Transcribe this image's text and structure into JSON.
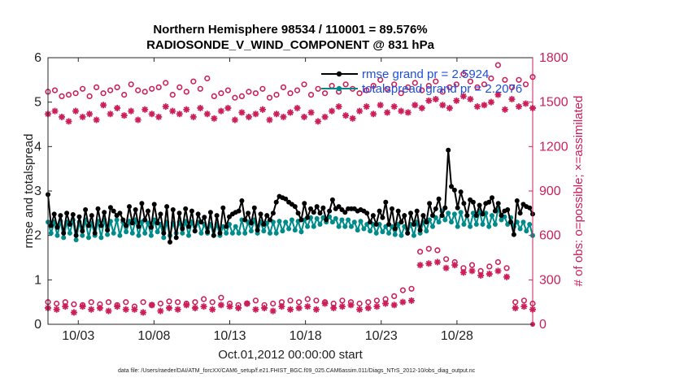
{
  "chart_data": {
    "type": "line",
    "title": "Northern Hemisphere 98534 / 110001 = 89.576%",
    "subtitle": "RADIOSONDE_V_WIND_COMPONENT @ 831 hPa",
    "xlabel": "Oct.01,2012 00:00:00 start",
    "ylabel_left": "rmse and totalspread",
    "ylabel_right": "# of obs: o=possible; ×=assimilated",
    "x_range": [
      1,
      33
    ],
    "x_ticks": [
      3,
      8,
      13,
      18,
      23,
      28
    ],
    "x_tick_labels": [
      "10/03",
      "10/08",
      "10/13",
      "10/18",
      "10/23",
      "10/28"
    ],
    "ylim_left": [
      0,
      6
    ],
    "y_ticks_left": [
      "0",
      "1",
      "2",
      "3",
      "4",
      "5",
      "6"
    ],
    "ylim_right": [
      0,
      1800
    ],
    "y_ticks_right": [
      "0",
      "300",
      "600",
      "900",
      "1200",
      "1500",
      "1800"
    ],
    "x_step_days": 0.25,
    "colors": {
      "rmse": "#000000",
      "totalspread": "#008b8b",
      "obs": "#cc1f5a",
      "legend_text": "#1f4fd6"
    },
    "legend": [
      "rmse grand pr = 2.5924",
      "totalspread grand pr = 2.2076"
    ],
    "series": [
      {
        "name": "rmse",
        "axis": "left",
        "values": [
          2.92,
          2.22,
          2.48,
          2.18,
          2.45,
          2.05,
          2.5,
          2.25,
          2.47,
          2.0,
          2.42,
          2.1,
          2.58,
          2.22,
          2.45,
          2.05,
          2.6,
          2.22,
          2.52,
          2.12,
          2.63,
          2.55,
          2.45,
          2.5,
          2.35,
          2.22,
          2.65,
          2.28,
          2.58,
          2.2,
          2.72,
          2.35,
          2.55,
          2.18,
          2.7,
          2.28,
          2.48,
          2.05,
          2.65,
          1.85,
          2.58,
          1.95,
          2.5,
          2.15,
          2.6,
          2.2,
          2.55,
          2.1,
          2.48,
          2.3,
          2.41,
          2.08,
          2.52,
          2.0,
          2.45,
          2.05,
          2.62,
          2.2,
          2.42,
          2.48,
          2.52,
          2.55,
          2.78,
          2.35,
          2.5,
          2.28,
          2.62,
          2.12,
          2.48,
          2.25,
          2.45,
          2.35,
          2.5,
          2.75,
          2.88,
          2.85,
          2.82,
          2.75,
          2.7,
          2.65,
          2.5,
          2.35,
          2.72,
          2.4,
          2.6,
          2.52,
          2.65,
          2.5,
          2.62,
          2.35,
          2.55,
          2.8,
          2.6,
          2.65,
          2.58,
          2.52,
          2.6,
          2.6,
          2.6,
          2.55,
          2.58,
          2.55,
          2.5,
          2.3,
          2.45,
          2.25,
          2.55,
          2.4,
          2.75,
          2.25,
          2.6,
          2.15,
          2.55,
          2.3,
          2.45,
          2.05,
          2.5,
          2.25,
          2.55,
          2.12,
          2.45,
          2.3,
          2.72,
          2.45,
          2.6,
          2.82,
          2.45,
          2.62,
          3.92,
          3.1,
          3.02,
          2.62,
          2.98,
          2.72,
          2.45,
          2.8,
          2.75,
          2.45,
          2.68,
          2.48,
          2.72,
          2.75,
          2.85,
          2.55,
          2.72,
          2.45,
          2.55,
          2.58,
          2.3,
          2.02,
          2.78,
          2.5,
          2.7,
          2.65,
          2.62,
          2.48
        ]
      },
      {
        "name": "totalspread",
        "axis": "left",
        "values": [
          2.3,
          2.05,
          2.3,
          2.0,
          2.32,
          1.95,
          2.3,
          2.05,
          2.35,
          1.9,
          2.3,
          2.0,
          2.35,
          1.95,
          2.28,
          2.0,
          2.32,
          1.95,
          2.35,
          2.02,
          2.32,
          2.05,
          2.35,
          2.0,
          2.3,
          2.08,
          2.32,
          2.05,
          2.35,
          2.0,
          2.3,
          2.05,
          2.28,
          2.0,
          2.35,
          2.08,
          2.25,
          1.95,
          2.3,
          2.0,
          2.28,
          2.05,
          2.3,
          2.05,
          2.32,
          2.0,
          2.3,
          2.1,
          2.3,
          2.05,
          2.25,
          2.05,
          2.25,
          2.0,
          2.25,
          2.0,
          2.2,
          2.05,
          2.25,
          2.05,
          2.2,
          2.05,
          2.35,
          2.05,
          2.3,
          2.1,
          2.35,
          2.05,
          2.3,
          2.1,
          2.28,
          2.05,
          2.3,
          2.05,
          2.32,
          2.1,
          2.3,
          2.15,
          2.35,
          2.12,
          2.32,
          2.08,
          2.35,
          2.2,
          2.4,
          2.2,
          2.38,
          2.25,
          2.4,
          2.3,
          2.42,
          2.3,
          2.38,
          2.2,
          2.35,
          2.2,
          2.35,
          2.2,
          2.3,
          2.12,
          2.32,
          2.15,
          2.25,
          2.1,
          2.25,
          2.05,
          2.25,
          2.08,
          2.2,
          2.05,
          2.2,
          2.02,
          2.25,
          2.0,
          2.2,
          2.05,
          2.25,
          2.0,
          2.3,
          2.05,
          2.3,
          2.1,
          2.35,
          2.2,
          2.4,
          2.3,
          2.55,
          2.35,
          2.5,
          2.3,
          2.48,
          2.2,
          2.52,
          2.25,
          2.45,
          2.2,
          2.5,
          2.25,
          2.55,
          2.25,
          2.5,
          2.2,
          2.45,
          2.25,
          2.62,
          2.35,
          2.42,
          2.25,
          2.4,
          2.2,
          2.3,
          2.15,
          2.3,
          2.1,
          2.25,
          2.0
        ]
      },
      {
        "name": "obs possible",
        "axis": "right",
        "values": [
          1570,
          1580,
          1540,
          1550,
          1560,
          1590,
          1540,
          1600,
          1560,
          1580,
          1600,
          1550,
          1620,
          1580,
          1570,
          1590,
          1600,
          1630,
          1550,
          1600,
          1570,
          1640,
          1590,
          1660,
          1540,
          1560,
          1580,
          1530,
          1540,
          1570,
          1560,
          1590,
          1530,
          1550,
          1600,
          1560,
          1580,
          1620,
          1550,
          1590,
          1560,
          1610,
          1570,
          1620,
          1590,
          1560,
          1580,
          1610,
          1650,
          1590,
          1620,
          1560,
          1600,
          1630,
          1580,
          1610,
          1640,
          1570,
          1600,
          1620,
          1690,
          1640,
          1600,
          1620,
          1660,
          1750,
          1650,
          1600,
          1650,
          1620,
          1670
        ]
      },
      {
        "name": "obs assimilated",
        "axis": "right",
        "values": [
          1420,
          1440,
          1400,
          1370,
          1440,
          1400,
          1420,
          1380,
          1480,
          1420,
          1460,
          1410,
          1440,
          1380,
          1450,
          1420,
          1400,
          1470,
          1440,
          1420,
          1450,
          1400,
          1460,
          1420,
          1390,
          1440,
          1460,
          1380,
          1430,
          1400,
          1420,
          1450,
          1380,
          1420,
          1400,
          1430,
          1460,
          1400,
          1430,
          1370,
          1400,
          1440,
          1470,
          1410,
          1390,
          1440,
          1470,
          1420,
          1480,
          1430,
          1470,
          1440,
          1430,
          1480,
          1460,
          1510,
          1520,
          1480,
          1460,
          1510,
          1540,
          1520,
          1470,
          1480,
          1500,
          1550,
          1450,
          1520,
          1470,
          1490,
          1460
        ]
      },
      {
        "name": "obs possible (low)",
        "axis": "right",
        "values": [
          150,
          140,
          150,
          135,
          130,
          150,
          135,
          150,
          130,
          150,
          120,
          150,
          130,
          140,
          155,
          150,
          140,
          150,
          170,
          150,
          180,
          140,
          130,
          140,
          160,
          130,
          140,
          150,
          160,
          150,
          170,
          160,
          150,
          140,
          160,
          150,
          140,
          150,
          160,
          170,
          190,
          230,
          240,
          490,
          510,
          500,
          440,
          420,
          380,
          400,
          360,
          390,
          420,
          380,
          150,
          160,
          140
        ]
      },
      {
        "name": "obs assimilated (low)",
        "axis": "right",
        "values": [
          110,
          100,
          120,
          80,
          120,
          100,
          110,
          90,
          120,
          100,
          100,
          80,
          130,
          90,
          110,
          100,
          130,
          110,
          120,
          100,
          130,
          120,
          110,
          140,
          100,
          110,
          90,
          120,
          100,
          110,
          120,
          100,
          140,
          110,
          120,
          130,
          100,
          110,
          120,
          140,
          130,
          150,
          160,
          400,
          410,
          420,
          380,
          400,
          350,
          360,
          330,
          340,
          360,
          320,
          110,
          120,
          100
        ]
      }
    ],
    "annotations": {
      "footer": "data file: /Users/raeder/DAI/ATM_forcXX/CAM6_setup/f.e21.FHIST_BGC.f09_025.CAM6assim.011/Diags_NTrS_2012-10/obs_diag_output.nc"
    }
  }
}
